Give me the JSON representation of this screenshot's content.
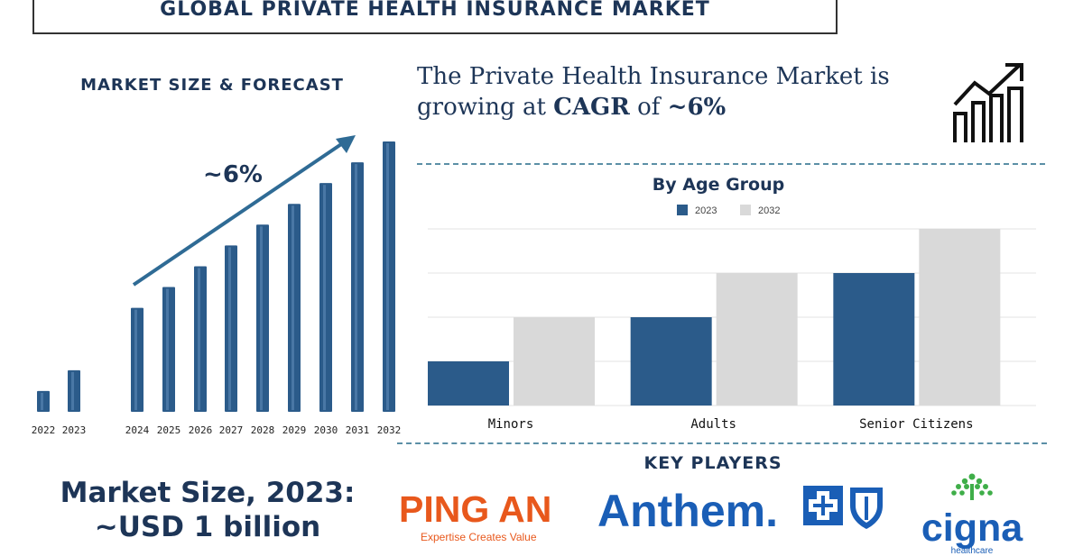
{
  "header": {
    "title": "GLOBAL PRIVATE HEALTH INSURANCE MARKET"
  },
  "forecast": {
    "heading": "MARKET SIZE & FORECAST",
    "arrow_label": "~6%",
    "size_line1": "Market Size, 2023:",
    "size_line2": "~USD 1 billion"
  },
  "growth": {
    "text_pre": "The Private Health Insurance Market is growing at ",
    "cagr_word": "CAGR",
    "text_mid": " of ",
    "cagr_value": "~6%",
    "icon": "growth-chart-icon"
  },
  "key_players": {
    "heading": "KEY PLAYERS",
    "pingan": {
      "name": "PING AN",
      "tagline": "Expertise Creates Value"
    },
    "anthem": {
      "name": "Anthem."
    },
    "cigna": {
      "name": "cigna",
      "sub": "healthcare"
    }
  },
  "colors": {
    "navy": "#1d3557",
    "bar_dark": "#2b5b8a",
    "bar_light": "#d9d9d9",
    "accent_orange": "#e8581c",
    "accent_blue": "#1a5eb6"
  },
  "chart_data": [
    {
      "type": "bar",
      "title": "",
      "categories": [
        "2022",
        "2023",
        "2024",
        "2025",
        "2026",
        "2027",
        "2028",
        "2029",
        "2030",
        "2031",
        "2032"
      ],
      "values": [
        1,
        2,
        5,
        6,
        7,
        8,
        9,
        10,
        11,
        12,
        13
      ],
      "annotation": "~6%",
      "grid": false,
      "y_axis_shown": false
    },
    {
      "type": "bar",
      "title": "By Age Group",
      "categories": [
        "Minors",
        "Adults",
        "Senior Citizens"
      ],
      "series": [
        {
          "name": "2023",
          "values": [
            1,
            2,
            3
          ]
        },
        {
          "name": "2032",
          "values": [
            2,
            3,
            4
          ]
        }
      ],
      "ylim": [
        0,
        4
      ],
      "grid": true,
      "legend": "top"
    }
  ]
}
